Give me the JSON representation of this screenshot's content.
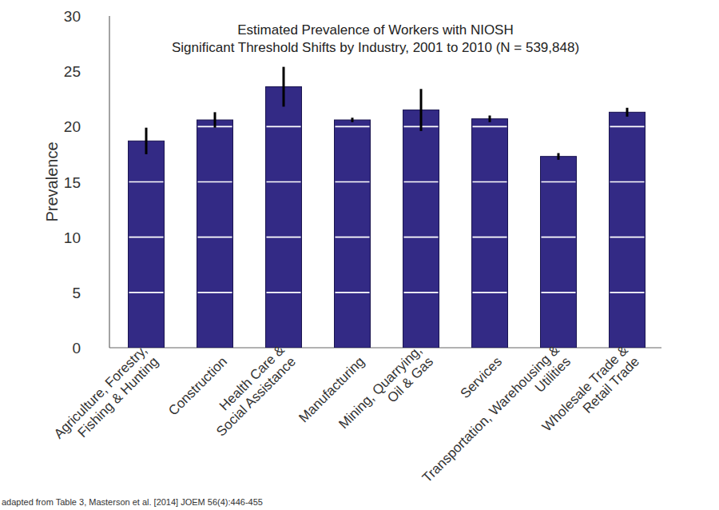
{
  "chart_data": {
    "type": "bar",
    "title": "Estimated Prevalence of Workers with NIOSH\nSignificant Threshold Shifts by Industry, 2001 to 2010 (N = 539,848)",
    "y_label": "Prevalence",
    "annotations": [
      "adapted from Table 3, Masterson et al. [2014] JOEM 56(4):446-455"
    ],
    "categories": [
      "Agriculture, Forestry,\nFishing & Hunting",
      "Construction",
      "Health Care &\nSocial Assistance",
      "Manufacturing",
      "Mining, Quarrying,\nOil & Gas",
      "Services",
      "Transportation, Warehousing &\nUtilities",
      "Wholesale Trade &\nRetail Trade"
    ],
    "values": [
      18.7,
      20.6,
      23.6,
      20.6,
      21.5,
      20.7,
      17.3,
      21.3
    ],
    "errors": [
      1.2,
      0.7,
      1.8,
      0.2,
      1.9,
      0.3,
      0.3,
      0.4
    ],
    "color": "#332a85",
    "ylim": [
      0,
      30
    ],
    "yticks": [
      0,
      5,
      10,
      15,
      20,
      25,
      30
    ],
    "grid": true
  }
}
